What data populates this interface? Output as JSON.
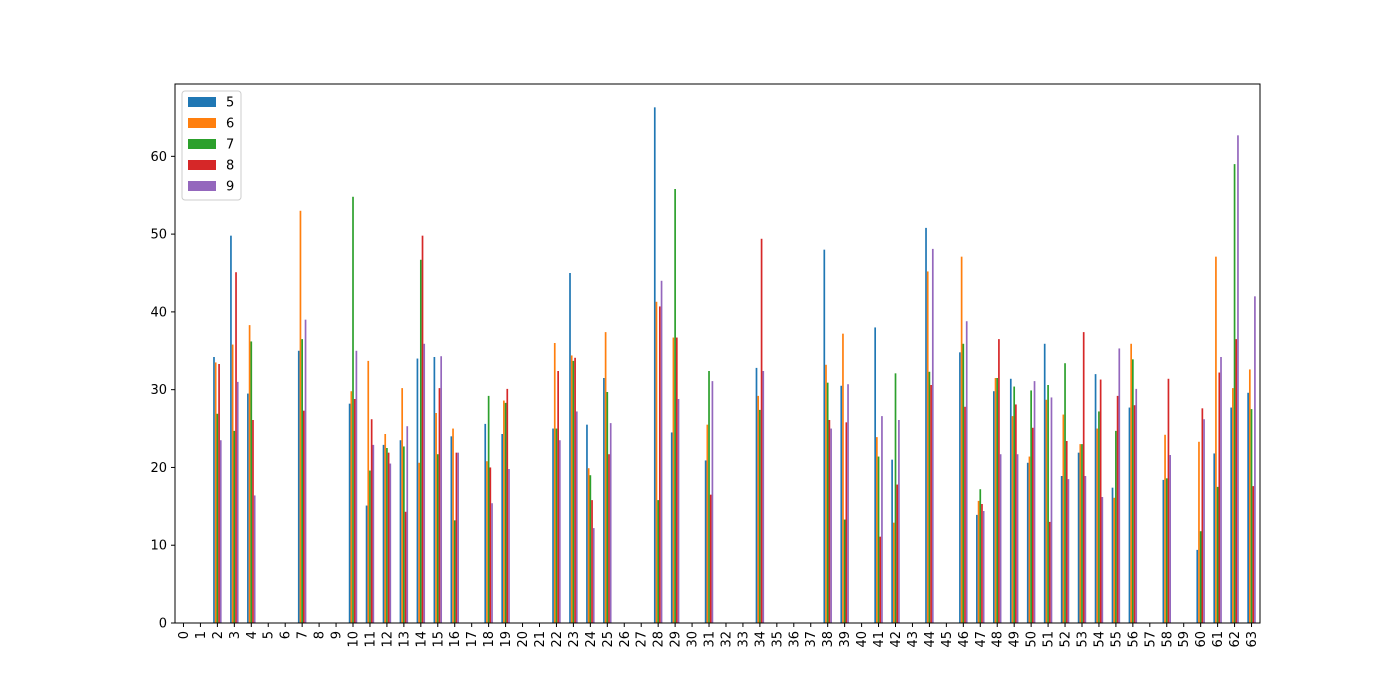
{
  "chart_data": {
    "type": "bar",
    "categories": [
      "0",
      "1",
      "2",
      "3",
      "4",
      "5",
      "6",
      "7",
      "8",
      "9",
      "10",
      "11",
      "12",
      "13",
      "14",
      "15",
      "16",
      "17",
      "18",
      "19",
      "20",
      "21",
      "22",
      "23",
      "24",
      "25",
      "26",
      "27",
      "28",
      "29",
      "30",
      "31",
      "32",
      "33",
      "34",
      "35",
      "36",
      "37",
      "38",
      "39",
      "40",
      "41",
      "42",
      "43",
      "44",
      "45",
      "46",
      "47",
      "48",
      "49",
      "50",
      "51",
      "52",
      "53",
      "54",
      "55",
      "56",
      "57",
      "58",
      "59",
      "60",
      "61",
      "62",
      "63"
    ],
    "series": [
      {
        "name": "5",
        "color": "#1f77b4",
        "values": [
          0,
          0,
          34.2,
          49.8,
          29.5,
          0,
          0,
          35.0,
          0,
          0,
          28.2,
          15.1,
          22.9,
          23.5,
          34.0,
          34.2,
          24.0,
          0,
          25.6,
          24.3,
          0,
          0,
          25.0,
          45.0,
          25.5,
          31.5,
          0,
          0,
          66.3,
          24.5,
          0,
          20.9,
          0,
          0,
          32.8,
          0,
          0,
          0,
          48.0,
          30.5,
          0,
          38.0,
          21.0,
          0,
          50.8,
          0,
          34.8,
          13.9,
          29.8,
          31.4,
          20.6,
          35.9,
          18.9,
          21.9,
          32.0,
          17.4,
          27.7,
          0,
          18.4,
          0,
          9.4,
          21.8,
          27.7,
          29.6
        ]
      },
      {
        "name": "6",
        "color": "#ff7f0e",
        "values": [
          0,
          0,
          33.5,
          35.8,
          38.3,
          0,
          0,
          53.0,
          0,
          0,
          29.8,
          33.7,
          24.3,
          30.2,
          20.6,
          27.0,
          25.0,
          0,
          20.8,
          28.6,
          0,
          0,
          36.0,
          34.4,
          19.9,
          37.4,
          0,
          0,
          41.3,
          36.7,
          0,
          25.5,
          0,
          0,
          29.2,
          0,
          0,
          0,
          33.2,
          37.2,
          0,
          23.9,
          12.9,
          0,
          45.2,
          0,
          47.1,
          15.7,
          31.5,
          26.6,
          21.4,
          28.7,
          26.8,
          23.0,
          25.0,
          16.1,
          35.9,
          0,
          24.2,
          0,
          23.3,
          47.1,
          30.2,
          32.6
        ]
      },
      {
        "name": "7",
        "color": "#2ca02c",
        "values": [
          0,
          0,
          26.9,
          24.7,
          36.2,
          0,
          0,
          36.5,
          0,
          0,
          54.8,
          19.6,
          22.5,
          22.7,
          46.7,
          21.7,
          13.2,
          0,
          29.2,
          28.3,
          0,
          0,
          25.0,
          33.7,
          19.0,
          29.7,
          0,
          0,
          15.8,
          55.8,
          0,
          32.4,
          0,
          0,
          27.4,
          0,
          0,
          0,
          30.9,
          13.3,
          0,
          21.4,
          32.1,
          0,
          32.3,
          0,
          35.9,
          17.2,
          31.5,
          30.4,
          29.9,
          30.6,
          33.4,
          23.0,
          27.2,
          24.7,
          33.9,
          0,
          18.6,
          0,
          11.8,
          17.5,
          59.0,
          27.5
        ]
      },
      {
        "name": "8",
        "color": "#d62728",
        "values": [
          0,
          0,
          33.3,
          45.1,
          26.1,
          0,
          0,
          27.3,
          0,
          0,
          28.8,
          26.2,
          21.9,
          14.3,
          49.8,
          30.2,
          21.9,
          0,
          20.0,
          30.1,
          0,
          0,
          32.4,
          34.1,
          15.8,
          21.7,
          0,
          0,
          40.7,
          36.7,
          0,
          16.5,
          0,
          0,
          49.4,
          0,
          0,
          0,
          26.1,
          25.8,
          0,
          11.1,
          17.8,
          0,
          30.6,
          0,
          27.8,
          15.3,
          36.5,
          28.1,
          25.1,
          13.0,
          23.4,
          37.4,
          31.3,
          29.2,
          28.0,
          0,
          31.4,
          0,
          27.6,
          32.2,
          36.5,
          17.6
        ]
      },
      {
        "name": "9",
        "color": "#9467bd",
        "values": [
          0,
          0,
          23.5,
          31.0,
          16.4,
          0,
          0,
          39.0,
          0,
          0,
          35.0,
          22.9,
          20.5,
          25.3,
          35.9,
          34.3,
          21.9,
          0,
          15.4,
          19.8,
          0,
          0,
          23.5,
          27.2,
          12.2,
          25.7,
          0,
          0,
          44.0,
          28.8,
          0,
          31.1,
          0,
          0,
          32.4,
          0,
          0,
          0,
          25.0,
          30.7,
          0,
          26.6,
          26.1,
          0,
          48.1,
          0,
          38.8,
          14.4,
          21.7,
          21.7,
          31.1,
          29.0,
          18.5,
          18.9,
          16.2,
          35.3,
          30.1,
          0,
          21.6,
          0,
          26.2,
          34.2,
          62.7,
          42.0
        ]
      }
    ],
    "xlabel": "",
    "ylabel": "",
    "ylim": [
      0,
      69.3
    ],
    "yticks": [
      0,
      10,
      20,
      30,
      40,
      50,
      60
    ],
    "grid": false,
    "legend_position": "upper left"
  }
}
